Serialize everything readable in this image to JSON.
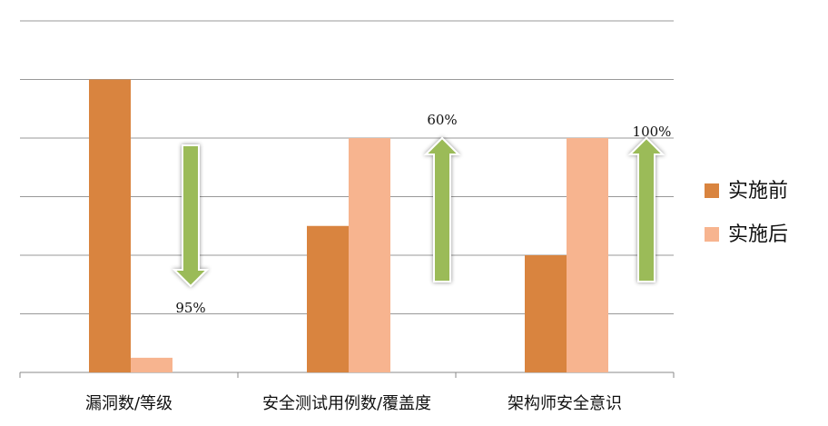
{
  "chart_data": {
    "type": "bar",
    "categories": [
      "漏洞数/等级",
      "安全测试用例数/覆盖度",
      "架构师安全意识"
    ],
    "series": [
      {
        "name": "实施前",
        "color": "#d9843f",
        "values": [
          5,
          2.5,
          2
        ]
      },
      {
        "name": "实施后",
        "color": "#f7b48f",
        "values": [
          0.25,
          4,
          4
        ]
      }
    ],
    "annotations": [
      "95%",
      "60%",
      "100%"
    ],
    "annotation_color": "#9bbb59",
    "ylim": [
      0,
      6
    ],
    "yticks": [
      0,
      1,
      2,
      3,
      4,
      5,
      6
    ],
    "grid": true,
    "legend": "right"
  }
}
